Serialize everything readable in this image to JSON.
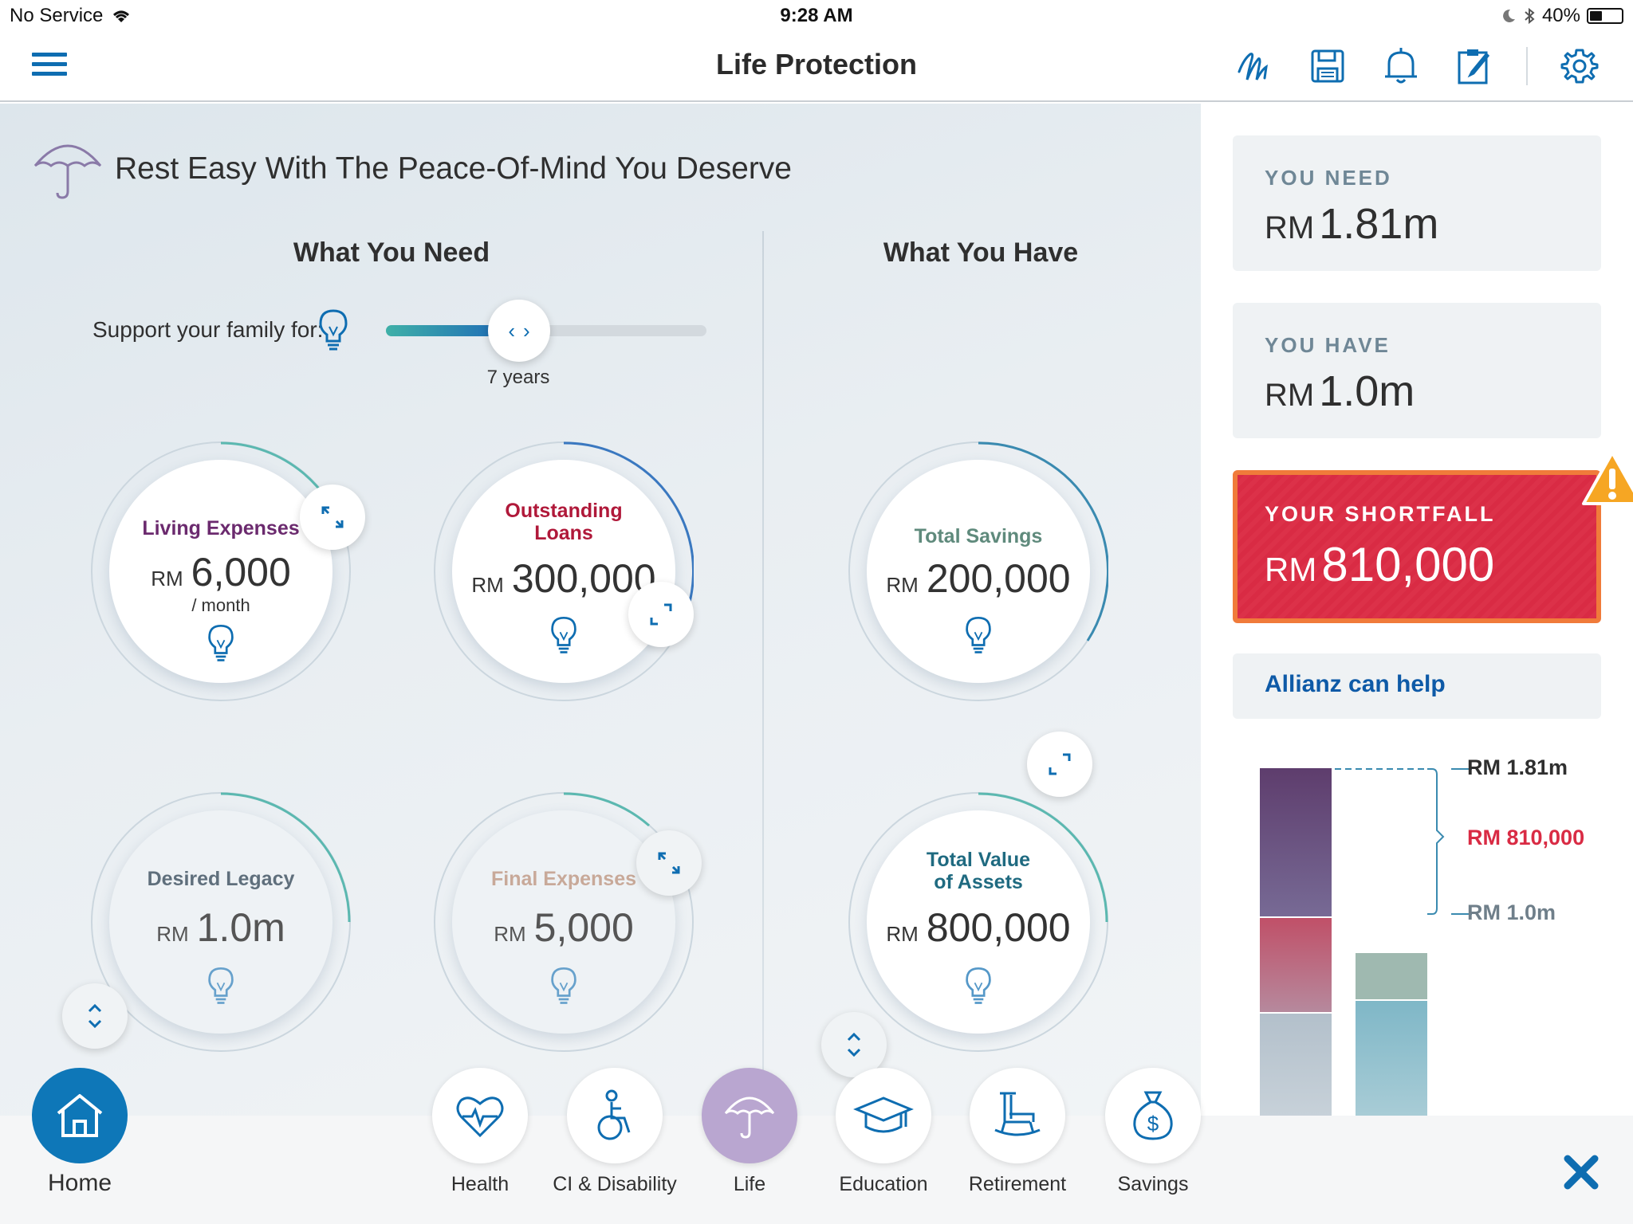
{
  "status": {
    "carrier": "No Service",
    "time": "9:28 AM",
    "battery": "40%",
    "battery_level": 0.4
  },
  "nav": {
    "title": "Life Protection"
  },
  "heading": "Rest Easy With The Peace-Of-Mind You Deserve",
  "need": {
    "title": "What You Need",
    "support_label": "Support your family for:",
    "slider_value": "7 years",
    "living": {
      "label": "Living Expenses",
      "currency": "RM",
      "value": "6,000",
      "sub": "/ month"
    },
    "loans": {
      "label_1": "Outstanding",
      "label_2": "Loans",
      "currency": "RM",
      "value": "300,000"
    },
    "legacy": {
      "label": "Desired Legacy",
      "currency": "RM",
      "value": "1.0m"
    },
    "final": {
      "label": "Final Expenses",
      "currency": "RM",
      "value": "5,000"
    }
  },
  "have": {
    "title": "What You Have",
    "savings": {
      "label": "Total Savings",
      "currency": "RM",
      "value": "200,000"
    },
    "assets": {
      "label_1": "Total Value",
      "label_2": "of Assets",
      "currency": "RM",
      "value": "800,000"
    }
  },
  "summary": {
    "need_caption": "YOU NEED",
    "need_currency": "RM",
    "need_value": "1.81m",
    "have_caption": "YOU HAVE",
    "have_currency": "RM",
    "have_value": "1.0m",
    "shortfall_caption": "YOUR SHORTFALL",
    "shortfall_currency": "RM",
    "shortfall_value": "810,000",
    "allianz": "Allianz can help"
  },
  "chart_labels": {
    "need": "RM 1.81m",
    "shortfall": "RM 810,000",
    "have": "RM 1.0m"
  },
  "tabs": {
    "home": "Home",
    "health": "Health",
    "ci": "CI & Disability",
    "life": "Life",
    "education": "Education",
    "retirement": "Retirement",
    "savings": "Savings"
  },
  "colors": {
    "accent": "#0e6db1",
    "shortfall": "#d92b44",
    "living": "#6b2a6e",
    "loans": "#b0193a",
    "savings": "#5f8a7c",
    "assets": "#1f6a80"
  }
}
